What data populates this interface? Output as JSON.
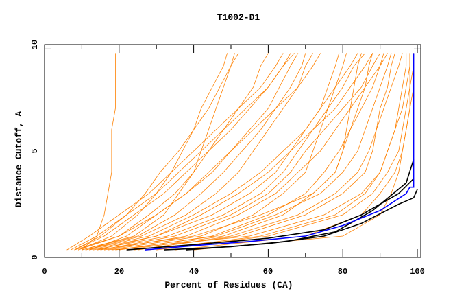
{
  "chart_data": {
    "type": "line",
    "title": "T1002-D1",
    "xlabel": "Percent of Residues (CA)",
    "ylabel": "Distance Cutoff, A",
    "xlim": [
      0,
      100
    ],
    "ylim": [
      0,
      10
    ],
    "x_ticks": [
      "0",
      "20",
      "40",
      "60",
      "80",
      "100"
    ],
    "y_ticks": [
      "0",
      "5",
      "10"
    ],
    "grid": false,
    "legend": "none",
    "colors": {
      "models": "#ff8000",
      "highlight": "#0000ff",
      "reference": "#000000"
    },
    "model_cutoffs": [
      0.35,
      1,
      2,
      3,
      4,
      5,
      6,
      7,
      8,
      9,
      9.6
    ],
    "model_series_x": [
      [
        6,
        12,
        20,
        28,
        34,
        40,
        46,
        52,
        58,
        62,
        64
      ],
      [
        8,
        15,
        22,
        27,
        31,
        36,
        40,
        44,
        47,
        50,
        52
      ],
      [
        10,
        14,
        16,
        17,
        18,
        18,
        18,
        19,
        19,
        19,
        19
      ],
      [
        8,
        20,
        30,
        38,
        45,
        50,
        56,
        62,
        68,
        72,
        74
      ],
      [
        12,
        30,
        45,
        55,
        62,
        66,
        70,
        74,
        78,
        82,
        84
      ],
      [
        15,
        35,
        50,
        60,
        66,
        70,
        75,
        80,
        85,
        88,
        90
      ],
      [
        20,
        45,
        60,
        70,
        75,
        79,
        82,
        85,
        88,
        90,
        92
      ],
      [
        25,
        50,
        68,
        78,
        84,
        87,
        89,
        91,
        93,
        95,
        96
      ],
      [
        9,
        18,
        25,
        30,
        34,
        37,
        40,
        42,
        45,
        48,
        49
      ],
      [
        14,
        40,
        58,
        72,
        78,
        80,
        81,
        82,
        83,
        84,
        85
      ],
      [
        10,
        25,
        35,
        42,
        48,
        53,
        58,
        62,
        66,
        69,
        70
      ],
      [
        18,
        55,
        75,
        85,
        90,
        92,
        94,
        95,
        96,
        97,
        97
      ],
      [
        30,
        60,
        80,
        88,
        92,
        95,
        96,
        97,
        98,
        98,
        98
      ],
      [
        12,
        22,
        30,
        38,
        44,
        50,
        55,
        60,
        63,
        66,
        68
      ],
      [
        8,
        16,
        24,
        32,
        38,
        44,
        50,
        55,
        60,
        64,
        66
      ],
      [
        16,
        38,
        52,
        62,
        68,
        74,
        78,
        82,
        86,
        90,
        91
      ],
      [
        22,
        48,
        64,
        72,
        78,
        80,
        82,
        84,
        86,
        87,
        88
      ],
      [
        35,
        70,
        85,
        90,
        94,
        96,
        97,
        98,
        99,
        99,
        99
      ],
      [
        11,
        28,
        40,
        50,
        58,
        64,
        70,
        74,
        76,
        78,
        79
      ],
      [
        13,
        33,
        48,
        58,
        64,
        68,
        72,
        76,
        80,
        83,
        86
      ],
      [
        40,
        80,
        90,
        93,
        95,
        96,
        97,
        98,
        98,
        99,
        99
      ],
      [
        9,
        20,
        28,
        35,
        40,
        44,
        48,
        52,
        56,
        58,
        60
      ],
      [
        17,
        42,
        56,
        64,
        70,
        72,
        74,
        76,
        78,
        80,
        81
      ],
      [
        24,
        52,
        70,
        80,
        86,
        88,
        89,
        90,
        92,
        93,
        94
      ],
      [
        10,
        24,
        32,
        36,
        40,
        42,
        44,
        46,
        48,
        50,
        51
      ],
      [
        14,
        30,
        42,
        52,
        60,
        66,
        72,
        78,
        82,
        86,
        88
      ],
      [
        7,
        14,
        22,
        30,
        36,
        42,
        48,
        54,
        60,
        64,
        67
      ],
      [
        19,
        46,
        62,
        74,
        80,
        84,
        86,
        88,
        90,
        92,
        93
      ],
      [
        28,
        58,
        78,
        86,
        90,
        92,
        94,
        96,
        97,
        98,
        98
      ],
      [
        11,
        26,
        38,
        46,
        52,
        56,
        60,
        64,
        68,
        70,
        72
      ]
    ],
    "reference_series": [
      {
        "name": "black-1",
        "x": [
          22,
          40,
          60,
          75,
          85,
          95,
          99
        ],
        "y": [
          0.35,
          0.6,
          0.9,
          1.3,
          2.0,
          3.0,
          3.7
        ]
      },
      {
        "name": "black-2",
        "x": [
          32,
          50,
          65,
          78,
          88,
          97,
          99
        ],
        "y": [
          0.35,
          0.5,
          0.75,
          1.2,
          2.2,
          3.5,
          4.6
        ]
      },
      {
        "name": "black-3",
        "x": [
          38,
          60,
          75,
          85,
          95,
          99,
          100
        ],
        "y": [
          0.35,
          0.65,
          1.0,
          1.6,
          2.5,
          2.8,
          3.2
        ]
      }
    ],
    "highlight_series": {
      "name": "blue",
      "x": [
        27,
        40,
        55,
        70,
        80,
        90,
        97,
        98,
        99,
        99
      ],
      "y": [
        0.35,
        0.55,
        0.75,
        1.0,
        1.5,
        2.2,
        3.0,
        3.3,
        3.3,
        9.6
      ]
    }
  }
}
